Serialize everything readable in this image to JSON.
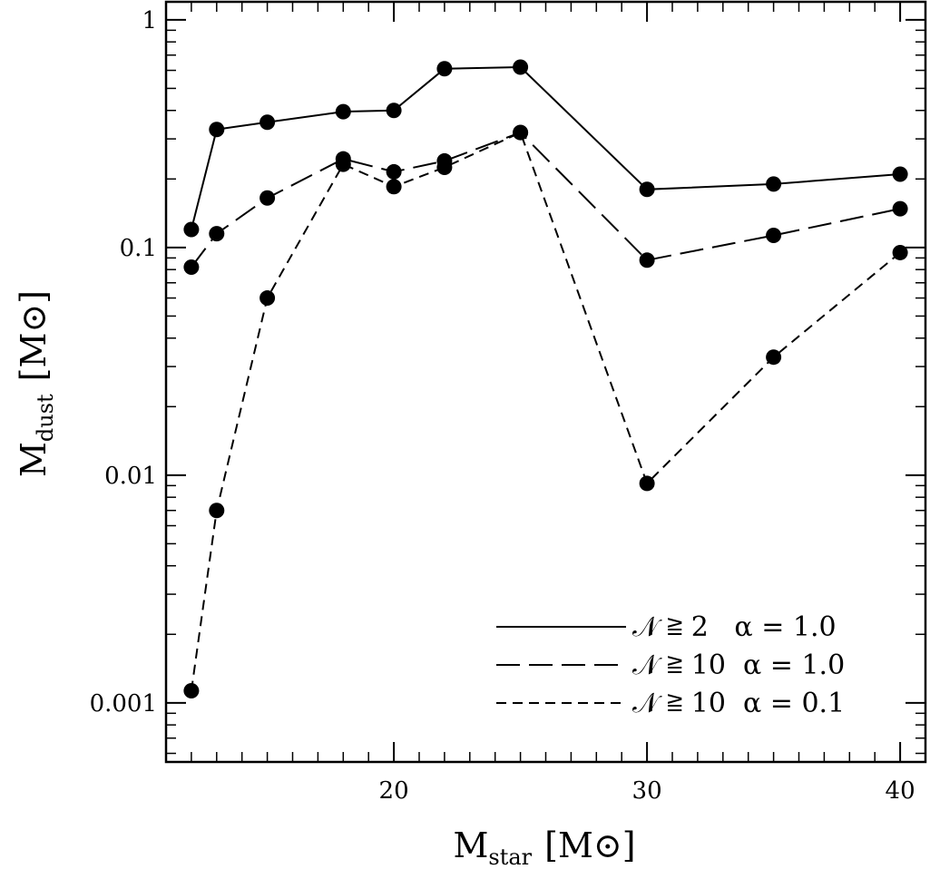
{
  "chart_data": {
    "type": "line",
    "xlabel": {
      "main": "M",
      "sub": "star",
      "unit": "[M⊙]"
    },
    "ylabel": {
      "main": "M",
      "sub": "dust",
      "unit": "[M⊙]"
    },
    "xlim": [
      11,
      41
    ],
    "ylim": [
      0.00055,
      1.2
    ],
    "yscale": "log",
    "x_ticks": [
      20,
      30,
      40
    ],
    "x_tick_labels": [
      "20",
      "30",
      "40"
    ],
    "y_ticks": [
      0.001,
      0.01,
      0.1,
      1
    ],
    "y_tick_labels": [
      "0.001",
      "0.01",
      "0.1",
      "1"
    ],
    "legend_position": "bottom-right",
    "series": [
      {
        "name": "𝒩 ≧ 2   α = 1.0",
        "linestyle": "solid",
        "x": [
          12,
          13,
          15,
          18,
          20,
          22,
          25,
          30,
          35,
          40
        ],
        "y": [
          0.12,
          0.33,
          0.355,
          0.395,
          0.4,
          0.61,
          0.62,
          0.18,
          0.19,
          0.21
        ]
      },
      {
        "name": "𝒩 ≧ 10  α = 1.0",
        "linestyle": "long-dash",
        "x": [
          12,
          13,
          15,
          18,
          20,
          22,
          25,
          30,
          35,
          40
        ],
        "y": [
          0.082,
          0.115,
          0.165,
          0.245,
          0.215,
          0.24,
          0.32,
          0.088,
          0.113,
          0.148
        ]
      },
      {
        "name": "𝒩 ≧ 10  α = 0.1",
        "linestyle": "short-dash",
        "x": [
          12,
          13,
          15,
          18,
          20,
          22,
          25,
          30,
          35,
          40
        ],
        "y": [
          0.00113,
          0.007,
          0.06,
          0.232,
          0.185,
          0.225,
          0.32,
          0.0092,
          0.033,
          0.095
        ]
      }
    ]
  }
}
